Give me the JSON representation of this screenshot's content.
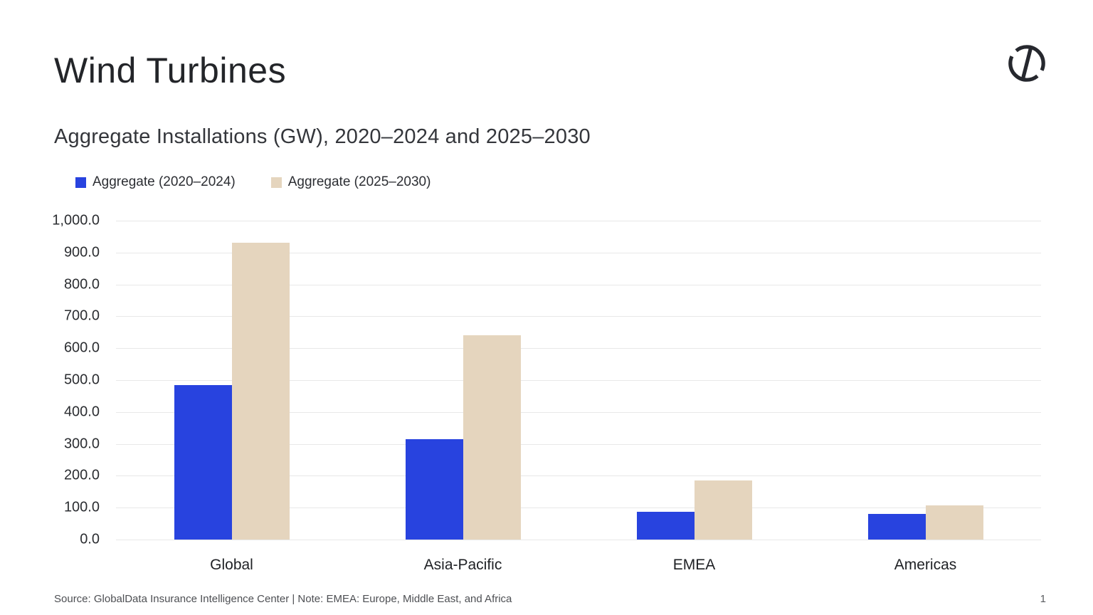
{
  "slide": {
    "title": "Wind Turbines",
    "subtitle": "Aggregate Installations (GW), 2020–2024 and 2025–2030",
    "footer": {
      "source_note": "Source: GlobalData Insurance Intelligence Center | Note: EMEA: Europe, Middle East, and Africa",
      "page_number": "1"
    },
    "logo_icon": "globaldata-circle-slash-logo"
  },
  "colors": {
    "series_2020_2024": "#2843df",
    "series_2025_2030": "#e5d5be",
    "gridline": "#e8e8e8",
    "logo_ink": "#26282e"
  },
  "chart_data": {
    "type": "bar",
    "title": "Aggregate Installations (GW), 2020–2024 and 2025–2030",
    "xlabel": "",
    "ylabel": "",
    "categories": [
      "Global",
      "Asia-Pacific",
      "EMEA",
      "Americas"
    ],
    "series": [
      {
        "name": "Aggregate (2020–2024)",
        "color": "#2843df",
        "values": [
          485,
          315,
          88,
          80
        ]
      },
      {
        "name": "Aggregate (2025–2030)",
        "color": "#e5d5be",
        "values": [
          930,
          640,
          185,
          108
        ]
      }
    ],
    "ylim": [
      0,
      1000
    ],
    "ytick_step": 100,
    "ytick_labels": [
      "0.0",
      "100.0",
      "200.0",
      "300.0",
      "400.0",
      "500.0",
      "600.0",
      "700.0",
      "800.0",
      "900.0",
      "1,000.0"
    ],
    "grid": true,
    "legend_position": "top-left"
  }
}
